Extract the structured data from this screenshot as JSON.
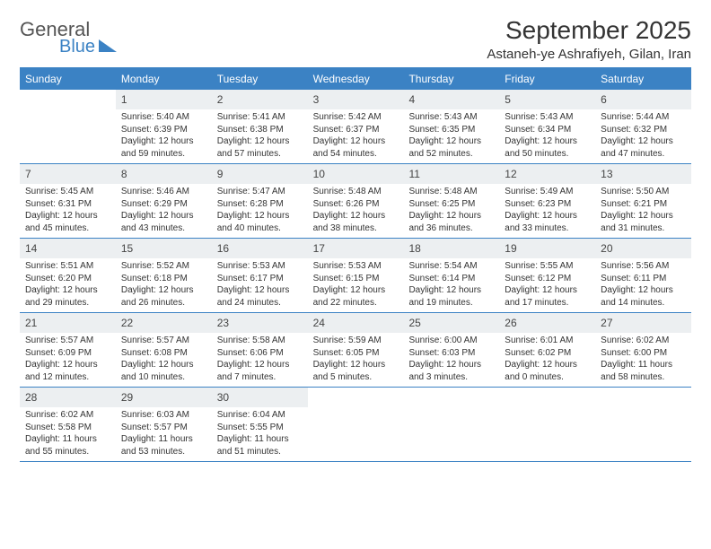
{
  "logo": {
    "main": "General",
    "sub": "Blue"
  },
  "title": "September 2025",
  "subtitle": "Astaneh-ye Ashrafiyeh, Gilan, Iran",
  "colors": {
    "accent": "#3b82c4",
    "daynum_bg": "#eceff1",
    "text": "#333333",
    "bg": "#ffffff"
  },
  "day_headers": [
    "Sunday",
    "Monday",
    "Tuesday",
    "Wednesday",
    "Thursday",
    "Friday",
    "Saturday"
  ],
  "weeks": [
    [
      {
        "n": "",
        "sr": "",
        "ss": "",
        "dl": "",
        "empty": true
      },
      {
        "n": "1",
        "sr": "Sunrise: 5:40 AM",
        "ss": "Sunset: 6:39 PM",
        "dl": "Daylight: 12 hours and 59 minutes."
      },
      {
        "n": "2",
        "sr": "Sunrise: 5:41 AM",
        "ss": "Sunset: 6:38 PM",
        "dl": "Daylight: 12 hours and 57 minutes."
      },
      {
        "n": "3",
        "sr": "Sunrise: 5:42 AM",
        "ss": "Sunset: 6:37 PM",
        "dl": "Daylight: 12 hours and 54 minutes."
      },
      {
        "n": "4",
        "sr": "Sunrise: 5:43 AM",
        "ss": "Sunset: 6:35 PM",
        "dl": "Daylight: 12 hours and 52 minutes."
      },
      {
        "n": "5",
        "sr": "Sunrise: 5:43 AM",
        "ss": "Sunset: 6:34 PM",
        "dl": "Daylight: 12 hours and 50 minutes."
      },
      {
        "n": "6",
        "sr": "Sunrise: 5:44 AM",
        "ss": "Sunset: 6:32 PM",
        "dl": "Daylight: 12 hours and 47 minutes."
      }
    ],
    [
      {
        "n": "7",
        "sr": "Sunrise: 5:45 AM",
        "ss": "Sunset: 6:31 PM",
        "dl": "Daylight: 12 hours and 45 minutes."
      },
      {
        "n": "8",
        "sr": "Sunrise: 5:46 AM",
        "ss": "Sunset: 6:29 PM",
        "dl": "Daylight: 12 hours and 43 minutes."
      },
      {
        "n": "9",
        "sr": "Sunrise: 5:47 AM",
        "ss": "Sunset: 6:28 PM",
        "dl": "Daylight: 12 hours and 40 minutes."
      },
      {
        "n": "10",
        "sr": "Sunrise: 5:48 AM",
        "ss": "Sunset: 6:26 PM",
        "dl": "Daylight: 12 hours and 38 minutes."
      },
      {
        "n": "11",
        "sr": "Sunrise: 5:48 AM",
        "ss": "Sunset: 6:25 PM",
        "dl": "Daylight: 12 hours and 36 minutes."
      },
      {
        "n": "12",
        "sr": "Sunrise: 5:49 AM",
        "ss": "Sunset: 6:23 PM",
        "dl": "Daylight: 12 hours and 33 minutes."
      },
      {
        "n": "13",
        "sr": "Sunrise: 5:50 AM",
        "ss": "Sunset: 6:21 PM",
        "dl": "Daylight: 12 hours and 31 minutes."
      }
    ],
    [
      {
        "n": "14",
        "sr": "Sunrise: 5:51 AM",
        "ss": "Sunset: 6:20 PM",
        "dl": "Daylight: 12 hours and 29 minutes."
      },
      {
        "n": "15",
        "sr": "Sunrise: 5:52 AM",
        "ss": "Sunset: 6:18 PM",
        "dl": "Daylight: 12 hours and 26 minutes."
      },
      {
        "n": "16",
        "sr": "Sunrise: 5:53 AM",
        "ss": "Sunset: 6:17 PM",
        "dl": "Daylight: 12 hours and 24 minutes."
      },
      {
        "n": "17",
        "sr": "Sunrise: 5:53 AM",
        "ss": "Sunset: 6:15 PM",
        "dl": "Daylight: 12 hours and 22 minutes."
      },
      {
        "n": "18",
        "sr": "Sunrise: 5:54 AM",
        "ss": "Sunset: 6:14 PM",
        "dl": "Daylight: 12 hours and 19 minutes."
      },
      {
        "n": "19",
        "sr": "Sunrise: 5:55 AM",
        "ss": "Sunset: 6:12 PM",
        "dl": "Daylight: 12 hours and 17 minutes."
      },
      {
        "n": "20",
        "sr": "Sunrise: 5:56 AM",
        "ss": "Sunset: 6:11 PM",
        "dl": "Daylight: 12 hours and 14 minutes."
      }
    ],
    [
      {
        "n": "21",
        "sr": "Sunrise: 5:57 AM",
        "ss": "Sunset: 6:09 PM",
        "dl": "Daylight: 12 hours and 12 minutes."
      },
      {
        "n": "22",
        "sr": "Sunrise: 5:57 AM",
        "ss": "Sunset: 6:08 PM",
        "dl": "Daylight: 12 hours and 10 minutes."
      },
      {
        "n": "23",
        "sr": "Sunrise: 5:58 AM",
        "ss": "Sunset: 6:06 PM",
        "dl": "Daylight: 12 hours and 7 minutes."
      },
      {
        "n": "24",
        "sr": "Sunrise: 5:59 AM",
        "ss": "Sunset: 6:05 PM",
        "dl": "Daylight: 12 hours and 5 minutes."
      },
      {
        "n": "25",
        "sr": "Sunrise: 6:00 AM",
        "ss": "Sunset: 6:03 PM",
        "dl": "Daylight: 12 hours and 3 minutes."
      },
      {
        "n": "26",
        "sr": "Sunrise: 6:01 AM",
        "ss": "Sunset: 6:02 PM",
        "dl": "Daylight: 12 hours and 0 minutes."
      },
      {
        "n": "27",
        "sr": "Sunrise: 6:02 AM",
        "ss": "Sunset: 6:00 PM",
        "dl": "Daylight: 11 hours and 58 minutes."
      }
    ],
    [
      {
        "n": "28",
        "sr": "Sunrise: 6:02 AM",
        "ss": "Sunset: 5:58 PM",
        "dl": "Daylight: 11 hours and 55 minutes."
      },
      {
        "n": "29",
        "sr": "Sunrise: 6:03 AM",
        "ss": "Sunset: 5:57 PM",
        "dl": "Daylight: 11 hours and 53 minutes."
      },
      {
        "n": "30",
        "sr": "Sunrise: 6:04 AM",
        "ss": "Sunset: 5:55 PM",
        "dl": "Daylight: 11 hours and 51 minutes."
      },
      {
        "n": "",
        "sr": "",
        "ss": "",
        "dl": "",
        "empty": true
      },
      {
        "n": "",
        "sr": "",
        "ss": "",
        "dl": "",
        "empty": true
      },
      {
        "n": "",
        "sr": "",
        "ss": "",
        "dl": "",
        "empty": true
      },
      {
        "n": "",
        "sr": "",
        "ss": "",
        "dl": "",
        "empty": true
      }
    ]
  ]
}
